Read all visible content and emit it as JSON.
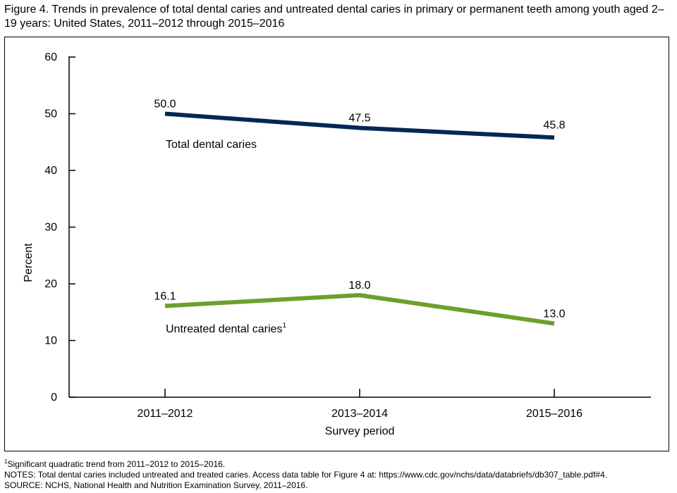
{
  "figure": {
    "title": "Figure 4. Trends in prevalence of total dental caries and untreated dental caries in primary or permanent teeth among youth aged 2–19 years: United States, 2011–2012 through 2015–2016"
  },
  "chart_data": {
    "type": "line",
    "title": "Figure 4. Trends in prevalence of total dental caries and untreated dental caries in primary or permanent teeth among youth aged 2–19 years: United States, 2011–2012 through 2015–2016",
    "xlabel": "Survey period",
    "ylabel": "Percent",
    "ylim": [
      0,
      60
    ],
    "yticks": [
      0,
      10,
      20,
      30,
      40,
      50,
      60
    ],
    "categories": [
      "2011–2012",
      "2013–2014",
      "2015–2016"
    ],
    "grid": false,
    "legend": "none",
    "series": [
      {
        "name": "Total dental caries",
        "values": [
          50.0,
          47.5,
          45.8
        ],
        "labels": [
          "50.0",
          "47.5",
          "45.8"
        ],
        "color": "#002855"
      },
      {
        "name": "Untreated dental caries",
        "footnote_marker": "1",
        "values": [
          16.1,
          18.0,
          13.0
        ],
        "labels": [
          "16.1",
          "18.0",
          "13.0"
        ],
        "color": "#6d9f2e"
      }
    ]
  },
  "notes": {
    "footnote_marker": "1",
    "footnote": "Significant quadratic trend from 2011–2012 to 2015–2016.",
    "notes_line": "NOTES: Total dental caries included untreated and treated caries. Access data table for Figure 4 at: https://www.cdc.gov/nchs/data/databriefs/db307_table.pdf#4.",
    "source_line": "SOURCE: NCHS, National Health and Nutrition Examination Survey, 2011–2016."
  }
}
